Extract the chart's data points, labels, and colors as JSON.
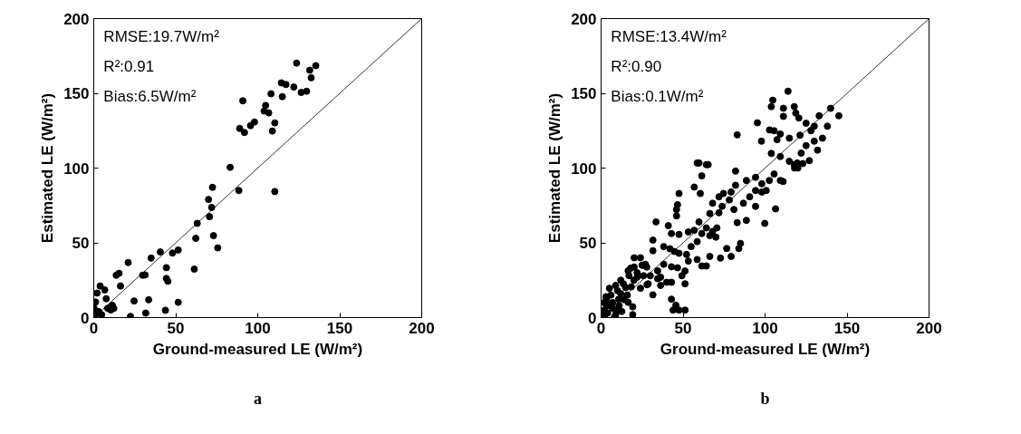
{
  "chart_data": [
    {
      "type": "scatter",
      "xlabel": "Ground-measured LE (W/m²)",
      "ylabel": "Estimated LE (W/m²)",
      "xlim": [
        0,
        200
      ],
      "ylim": [
        0,
        200
      ],
      "xticks": [
        0,
        50,
        100,
        150,
        200
      ],
      "yticks": [
        0,
        50,
        100,
        150,
        200
      ],
      "annotations": [
        "RMSE:19.7W/m²",
        "R²:0.91",
        "Bias:6.5W/m²",
        "a"
      ],
      "series": [
        {
          "marker": "circle",
          "color": "#000000",
          "x": [
            123.7,
            135.4,
            131.7,
            132.6,
            114.4,
            117.2,
            122,
            126.5,
            129.8,
            108.1,
            115,
            90.9,
            104.8,
            103.9,
            106.7,
            110.4,
            108.9,
            98,
            95.6,
            89,
            91.9,
            83.2,
            72.4,
            88.5,
            110.4,
            70,
            71.9,
            70.6,
            63.1,
            62.2,
            73,
            75.6,
            51.5,
            48,
            40.6,
            35,
            21,
            44.3,
            61.3,
            44.3,
            45.2,
            15.4,
            13.7,
            29.8,
            31.3,
            16.3,
            24.6,
            33.5,
            51.5,
            43.7,
            31.7,
            22.4,
            3.9,
            6.7,
            2,
            7.6,
            1.1,
            11.3,
            0.2,
            10.4,
            3,
            4.8,
            8.5,
            1,
            12.2
          ],
          "values": [
            170.2,
            168.5,
            165.5,
            160.4,
            157,
            155.9,
            154.2,
            150.6,
            151.4,
            149.7,
            147.8,
            145,
            141.9,
            138.2,
            136.9,
            130.2,
            124.8,
            130.8,
            128.4,
            126.5,
            123.8,
            100.5,
            87.1,
            85,
            84.3,
            79,
            73.7,
            67.5,
            63,
            53,
            54.8,
            46.6,
            45.2,
            43.2,
            43.9,
            39.8,
            36.8,
            33.4,
            32.4,
            26.2,
            24.3,
            29.6,
            28.3,
            28.3,
            28.5,
            21.1,
            11.1,
            11.9,
            10.2,
            4.9,
            3,
            0.8,
            21.1,
            18.5,
            16.4,
            12.6,
            10.4,
            8.3,
            6.2,
            5.1,
            4,
            1.9,
            6.2,
            2,
            6.2
          ]
        },
        {
          "type": "line",
          "color": "#000000",
          "x": [
            0,
            200
          ],
          "values": [
            0,
            200
          ]
        }
      ]
    },
    {
      "type": "scatter",
      "xlabel": "Ground-measured LE (W/m²)",
      "ylabel": "Estimated LE (W/m²)",
      "xlim": [
        0,
        200
      ],
      "ylim": [
        0,
        200
      ],
      "xticks": [
        0,
        50,
        100,
        150,
        200
      ],
      "yticks": [
        0,
        50,
        100,
        150,
        200
      ],
      "annotations": [
        "RMSE:13.4W/m²",
        "R²:0.90",
        "Bias:0.1W/m²",
        "b"
      ],
      "series": [
        {
          "marker": "circle",
          "color": "#000000",
          "x": [
            47.5,
            46.6,
            46,
            46,
            33.5,
            41,
            31.6,
            31.6,
            38.2,
            42,
            44.7,
            47.5,
            42.9,
            47.5,
            53.2,
            56.8,
            59.7,
            56.8,
            60.5,
            61.4,
            58.6,
            64.2,
            82,
            74.6,
            79.3,
            82,
            88.6,
            94.2,
            98,
            102.6,
            90.6,
            94.2,
            86.8,
            83,
            88.6,
            99.8,
            106.4,
            111,
            71.9,
            73.8,
            66.3,
            64.2,
            68,
            70.6,
            66.3,
            70,
            61.4,
            58.6,
            54.9,
            52.1,
            53.2,
            58.6,
            64.2,
            61.4,
            66.3,
            72.8,
            76.6,
            79.3,
            84,
            85,
            46.6,
            51.2,
            49.3,
            51.2,
            42.9,
            40,
            36.3,
            34.5,
            38.2,
            42.9,
            42.9,
            45.6,
            51.2,
            43.9,
            47.5,
            27.8,
            24,
            20.2,
            16.5,
            22,
            25.9,
            28.7,
            24,
            18.4,
            13.6,
            8.9,
            5.1,
            3.2,
            10.7,
            16.5,
            19.3,
            19.3,
            6.9,
            2.2,
            12.6,
            8.9,
            3.2,
            31.6,
            36.3,
            34.5,
            27,
            20.2,
            105.5,
            109.3,
            100.7,
            94.2,
            98,
            81,
            78.2,
            71.9,
            68,
            114,
            104.7,
            103.8,
            111.2,
            117.8,
            118.7,
            111.2,
            120.6,
            95.3,
            102.7,
            105.5,
            109.3,
            83,
            97.8,
            107.3,
            114.8,
            121.3,
            103.8,
            109.3,
            114.8,
            117.8,
            119.6,
            59.7,
            65.3,
            125,
            128,
            130,
            133,
            140,
            145,
            138,
            125,
            130,
            122,
            127,
            132,
            135,
            120,
            118,
            123,
            2,
            4,
            5,
            7,
            3,
            6,
            9,
            11,
            14,
            10,
            12,
            15,
            17,
            20,
            22,
            18,
            25,
            28,
            30,
            16,
            8,
            2,
            12
          ],
          "values": [
            83,
            75.5,
            72.3,
            68,
            64,
            61.5,
            51.8,
            44.7,
            47.5,
            46,
            44.2,
            43,
            56.2,
            55.6,
            57.3,
            58.4,
            64,
            87.3,
            83,
            94.8,
            103.4,
            102.3,
            98,
            83,
            84,
            88.5,
            91.7,
            93.8,
            89.5,
            91.7,
            80.8,
            74.4,
            76.5,
            63.5,
            65,
            63,
            72.7,
            91,
            70.1,
            74.4,
            69.6,
            60,
            57.6,
            60,
            54.8,
            53.8,
            56.2,
            50.8,
            47.5,
            42.2,
            37.8,
            38.8,
            34.5,
            34.5,
            40.9,
            39.8,
            46.2,
            40.9,
            46.2,
            49.6,
            33.3,
            31.2,
            28,
            22.6,
            23.6,
            23.6,
            27,
            31.2,
            35.6,
            34,
            12.3,
            8.3,
            5,
            5,
            5,
            33.8,
            40,
            33.8,
            31.2,
            27,
            28,
            22.6,
            19.6,
            20.6,
            22.6,
            21.5,
            19.6,
            12.3,
            12.3,
            10.2,
            7.2,
            2,
            6.2,
            2,
            4.1,
            2,
            8.3,
            15.2,
            21.5,
            26,
            35.6,
            40,
            96,
            91.7,
            85,
            85,
            84,
            72.3,
            78.7,
            80.8,
            76.5,
            151.4,
            145.4,
            141.1,
            140,
            141.1,
            136.8,
            134.6,
            133.5,
            130.3,
            125.5,
            125,
            122.8,
            122.2,
            118,
            119,
            120,
            122,
            109.8,
            107.7,
            104.5,
            102.3,
            103.4,
            103.4,
            102.3,
            130,
            125,
            128,
            135,
            140,
            135,
            128,
            115,
            118,
            110,
            105,
            112,
            120,
            100,
            100,
            103,
            5,
            3,
            8,
            10,
            14,
            15,
            5,
            8,
            12,
            18,
            25,
            20,
            28,
            25,
            30,
            33,
            35,
            22,
            28,
            15,
            0,
            10,
            16
          ]
        },
        {
          "type": "line",
          "color": "#000000",
          "x": [
            0,
            200
          ],
          "values": [
            0,
            200
          ]
        }
      ]
    }
  ]
}
